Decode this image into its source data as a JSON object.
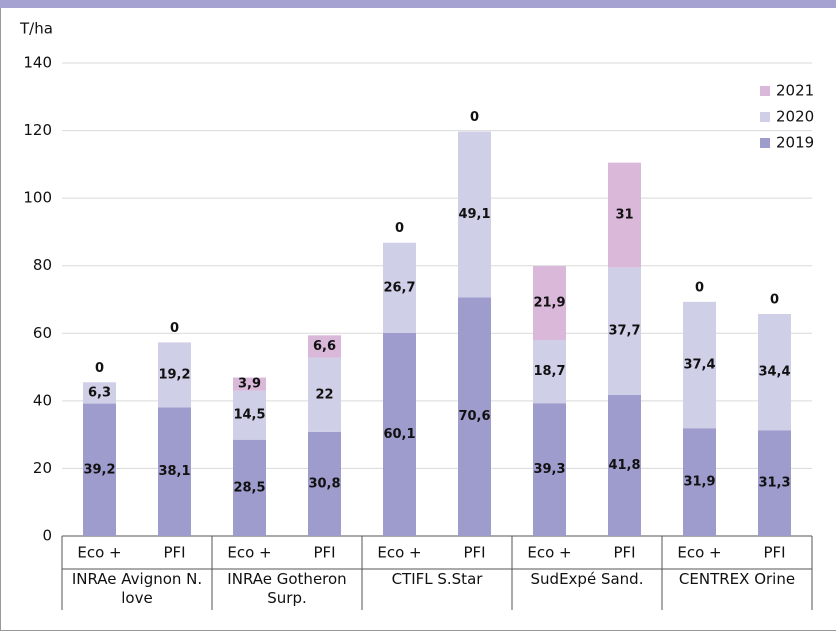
{
  "chart_data": {
    "type": "stacked_bar",
    "y_label": "T/ha",
    "categories": [
      "Eco +",
      "PFI",
      "Eco +",
      "PFI",
      "Eco +",
      "PFI",
      "Eco +",
      "PFI",
      "Eco +",
      "PFI"
    ],
    "groups": [
      "INRAe Avignon N. love",
      "INRAe Gotheron Surp.",
      "CTIFL S.Star",
      "SudExpé Sand.",
      "CENTREX Orine"
    ],
    "series": [
      {
        "name": "2019",
        "color": "#9e9bcd",
        "values": [
          39.2,
          38.1,
          28.5,
          30.8,
          60.1,
          70.6,
          39.3,
          41.8,
          31.9,
          31.3
        ],
        "value_labels": [
          "39,2",
          "38,1",
          "28,5",
          "30,8",
          "60,1",
          "70,6",
          "39,3",
          "41,8",
          "31,9",
          "31,3"
        ]
      },
      {
        "name": "2020",
        "color": "#d0cfe8",
        "values": [
          6.3,
          19.2,
          14.5,
          22,
          26.7,
          49.1,
          18.7,
          37.7,
          37.4,
          34.4
        ],
        "value_labels": [
          "6,3",
          "19,2",
          "14,5",
          "22",
          "26,7",
          "49,1",
          "18,7",
          "37,7",
          "37,4",
          "34,4"
        ]
      },
      {
        "name": "2021",
        "color": "#d9b8da",
        "values": [
          0,
          0,
          3.9,
          6.6,
          0,
          0,
          21.9,
          31,
          0,
          0
        ],
        "value_labels": [
          "0",
          "0",
          "3,9",
          "6,6",
          "0",
          "0",
          "21,9",
          "31",
          "0",
          "0"
        ]
      }
    ],
    "ylim": [
      0,
      140
    ],
    "yticks": [
      0,
      20,
      40,
      60,
      80,
      100,
      120,
      140
    ],
    "grid": true,
    "legend": "top-right"
  }
}
